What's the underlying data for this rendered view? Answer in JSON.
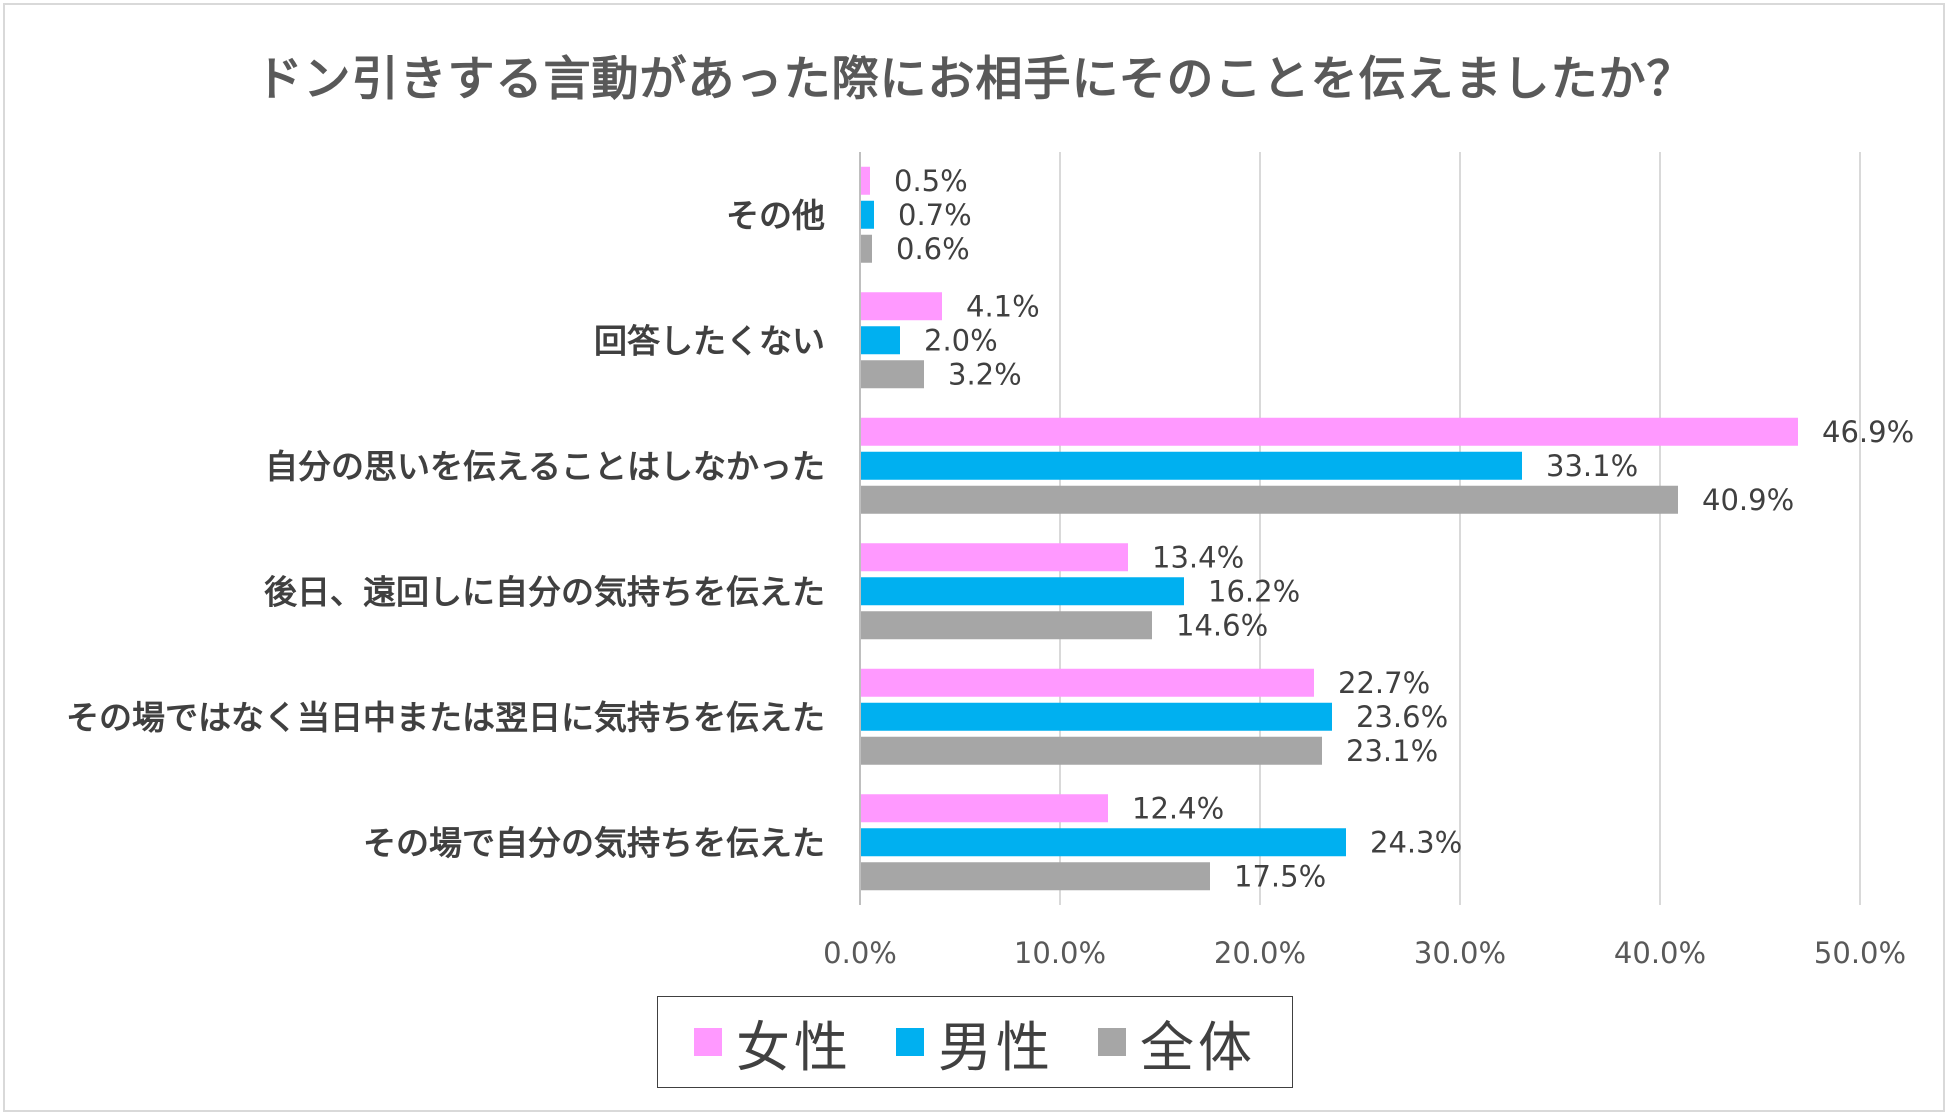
{
  "chart_data": {
    "type": "bar",
    "orientation": "horizontal",
    "title": "ドン引きする言動があった際にお相手にそのことを伝えましたか？",
    "categories": [
      "その他",
      "回答したくない",
      "自分の思いを伝えることはしなかった",
      "後日、遠回しに自分の気持ちを伝えた",
      "その場ではなく当日中または翌日に気持ちを伝えた",
      "その場で自分の気持ちを伝えた"
    ],
    "series": [
      {
        "name": "女性",
        "color": "#ff99ff",
        "values": [
          0.5,
          4.1,
          46.9,
          13.4,
          22.7,
          12.4
        ],
        "labels": [
          "0.5%",
          "4.1%",
          "46.9%",
          "13.4%",
          "22.7%",
          "12.4%"
        ]
      },
      {
        "name": "男性",
        "color": "#00b0f0",
        "values": [
          0.7,
          2.0,
          33.1,
          16.2,
          23.6,
          24.3
        ],
        "labels": [
          "0.7%",
          "2.0%",
          "33.1%",
          "16.2%",
          "23.6%",
          "24.3%"
        ]
      },
      {
        "name": "全体",
        "color": "#a6a6a6",
        "values": [
          0.6,
          3.2,
          40.9,
          14.6,
          23.1,
          17.5
        ],
        "labels": [
          "0.6%",
          "3.2%",
          "40.9%",
          "14.6%",
          "23.1%",
          "17.5%"
        ]
      }
    ],
    "xlim": [
      0,
      50
    ],
    "xticks": [
      0,
      10,
      20,
      30,
      40,
      50
    ],
    "xtick_labels": [
      "0.0%",
      "10.0%",
      "20.0%",
      "30.0%",
      "40.0%",
      "50.0%"
    ],
    "grid": "vertical",
    "legend": "bottom"
  }
}
